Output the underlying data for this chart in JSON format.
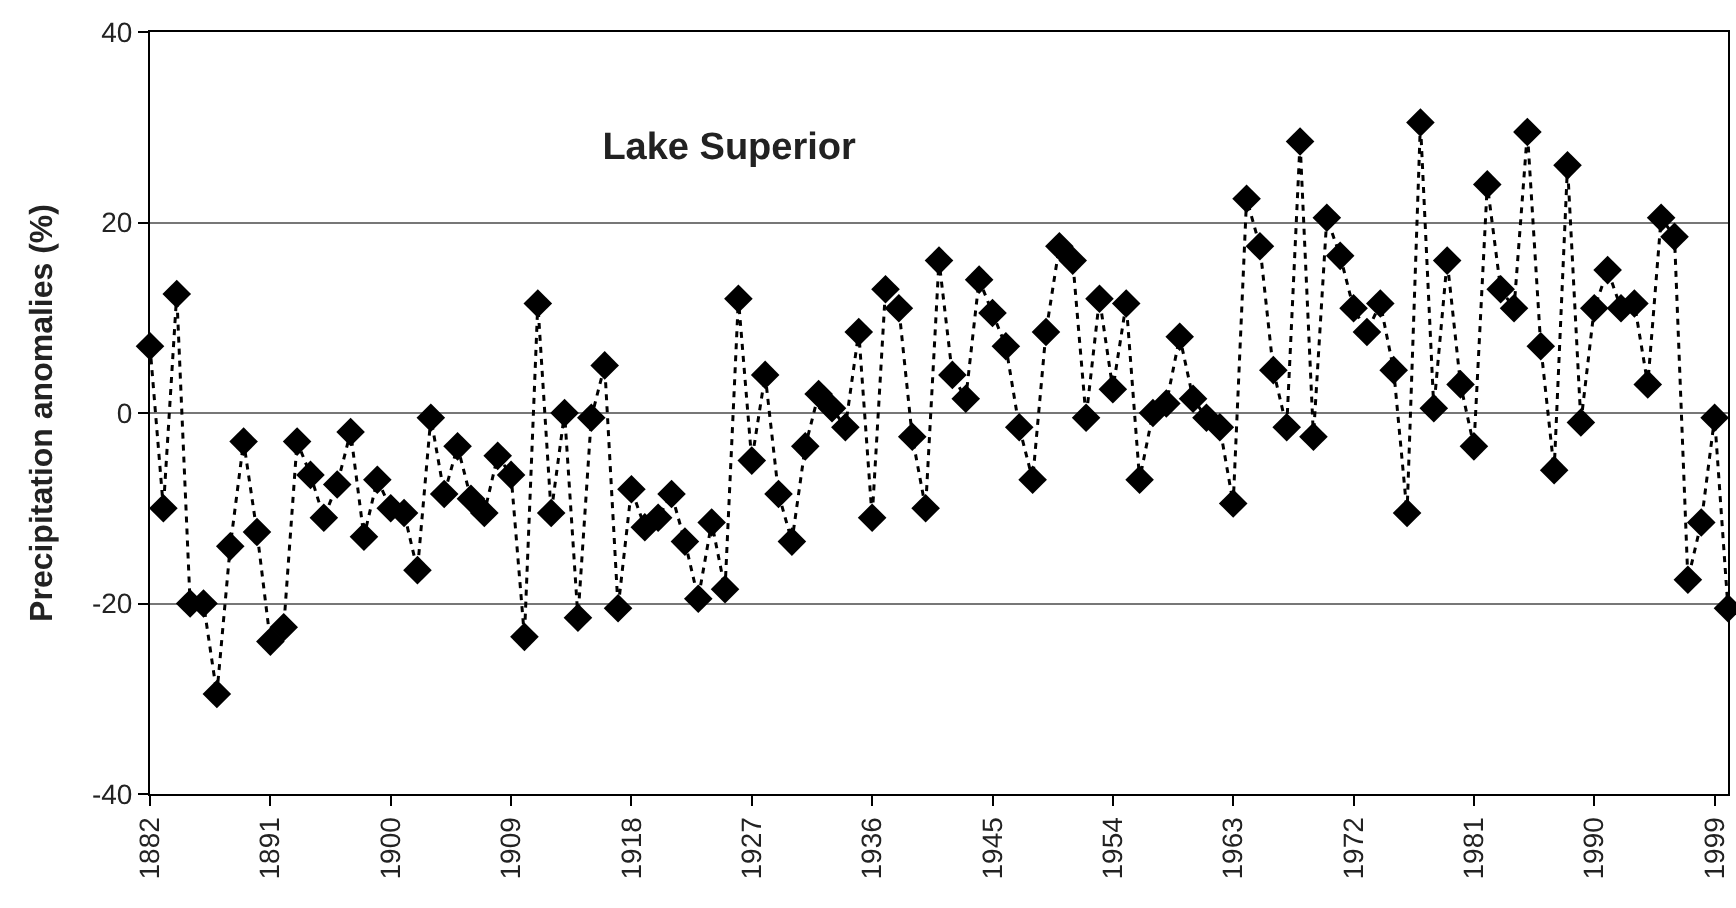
{
  "chart_data": {
    "type": "line",
    "title": "Lake Superior",
    "ylabel": "Precipitation anomalies (%)",
    "x": [
      1882,
      1883,
      1884,
      1885,
      1886,
      1887,
      1888,
      1889,
      1890,
      1891,
      1892,
      1893,
      1894,
      1895,
      1896,
      1897,
      1898,
      1899,
      1900,
      1901,
      1902,
      1903,
      1904,
      1905,
      1906,
      1907,
      1908,
      1909,
      1910,
      1911,
      1912,
      1913,
      1914,
      1915,
      1916,
      1917,
      1918,
      1919,
      1920,
      1921,
      1922,
      1923,
      1924,
      1925,
      1926,
      1927,
      1928,
      1929,
      1930,
      1931,
      1932,
      1933,
      1934,
      1935,
      1936,
      1937,
      1938,
      1939,
      1940,
      1941,
      1942,
      1943,
      1944,
      1945,
      1946,
      1947,
      1948,
      1949,
      1950,
      1951,
      1952,
      1953,
      1954,
      1955,
      1956,
      1957,
      1958,
      1959,
      1960,
      1961,
      1962,
      1963,
      1964,
      1965,
      1966,
      1967,
      1968,
      1969,
      1970,
      1971,
      1972,
      1973,
      1974,
      1975,
      1976,
      1977,
      1978,
      1979,
      1980,
      1981,
      1982,
      1983,
      1984,
      1985,
      1986,
      1987,
      1988,
      1989,
      1990,
      1991,
      1992,
      1993,
      1994,
      1995,
      1996,
      1997,
      1998,
      1999,
      2000
    ],
    "series": [
      {
        "color": "#000000",
        "values": [
          7,
          -10,
          12.5,
          -20,
          -20,
          -29.5,
          -14,
          -3,
          -12.5,
          -24,
          -22.5,
          -3,
          -6.5,
          -11,
          -7.5,
          -2,
          -13,
          -7,
          -10,
          -10.5,
          -16.5,
          -0.5,
          -8.5,
          -3.5,
          -9,
          -10.5,
          -4.5,
          -6.5,
          -23.5,
          11.5,
          -10.5,
          0,
          -21.5,
          -0.5,
          5,
          -20.5,
          -8,
          -12,
          -11,
          -8.5,
          -13.5,
          -19.5,
          -11.5,
          -18.5,
          12,
          -5,
          4,
          -8.5,
          -13.5,
          -3.5,
          2,
          0.5,
          -1.5,
          8.5,
          -11,
          13,
          11,
          -2.5,
          -10,
          16,
          4,
          1.5,
          14,
          10.5,
          7,
          -1.5,
          -7,
          8.5,
          17.5,
          16,
          -0.5,
          12,
          2.5,
          11.5,
          -7,
          0,
          1,
          8,
          1.5,
          -0.5,
          -1.5,
          -9.5,
          22.5,
          17.5,
          4.5,
          -1.5,
          28.5,
          -2.5,
          20.5,
          16.5,
          11,
          8.5,
          11.5,
          4.5,
          -10.5,
          30.5,
          0.5,
          16,
          3,
          -3.5,
          24,
          13,
          11,
          29.5,
          7,
          -6,
          26,
          -1,
          11,
          15,
          11,
          11.5,
          3,
          20.5,
          18.5,
          -17.5,
          -11.5,
          -0.5,
          -20.5
        ]
      }
    ],
    "xlim": [
      1882,
      2000
    ],
    "xticks": [
      1882,
      1891,
      1900,
      1909,
      1918,
      1927,
      1936,
      1945,
      1954,
      1963,
      1972,
      1981,
      1990,
      1999
    ],
    "ylim": [
      -40,
      40
    ],
    "yticks": [
      -40,
      -20,
      0,
      20,
      40
    ],
    "grid": "y",
    "marker": "diamond",
    "line_style": "dotted"
  }
}
